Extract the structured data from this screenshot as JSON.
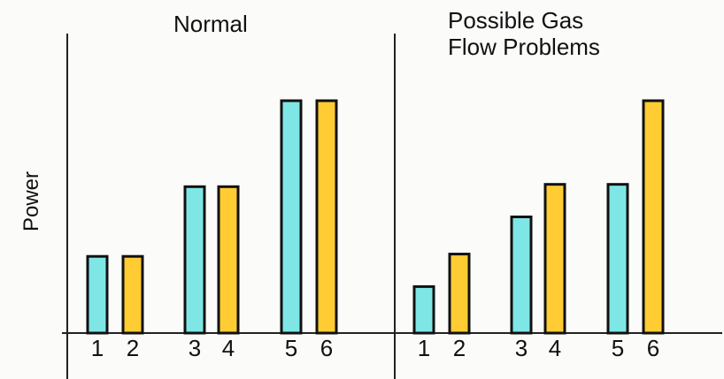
{
  "chart_data": [
    {
      "type": "bar",
      "title": "Normal",
      "ylabel": "Power",
      "categories": [
        "1",
        "2",
        "3",
        "4",
        "5",
        "6"
      ],
      "values": [
        3.3,
        3.3,
        6.3,
        6.3,
        10,
        10
      ],
      "ylim": [
        0,
        10
      ],
      "bar_colors": [
        "#7fe6e6",
        "#ffcc33",
        "#7fe6e6",
        "#ffcc33",
        "#7fe6e6",
        "#ffcc33"
      ],
      "grid": false
    },
    {
      "type": "bar",
      "title_lines": [
        "Possible Gas",
        "Flow Problems"
      ],
      "categories": [
        "1",
        "2",
        "3",
        "4",
        "5",
        "6"
      ],
      "values": [
        2,
        3.4,
        5,
        6.4,
        6.4,
        10
      ],
      "ylim": [
        0,
        10
      ],
      "bar_colors": [
        "#7fe6e6",
        "#ffcc33",
        "#7fe6e6",
        "#ffcc33",
        "#7fe6e6",
        "#ffcc33"
      ],
      "grid": false
    }
  ]
}
